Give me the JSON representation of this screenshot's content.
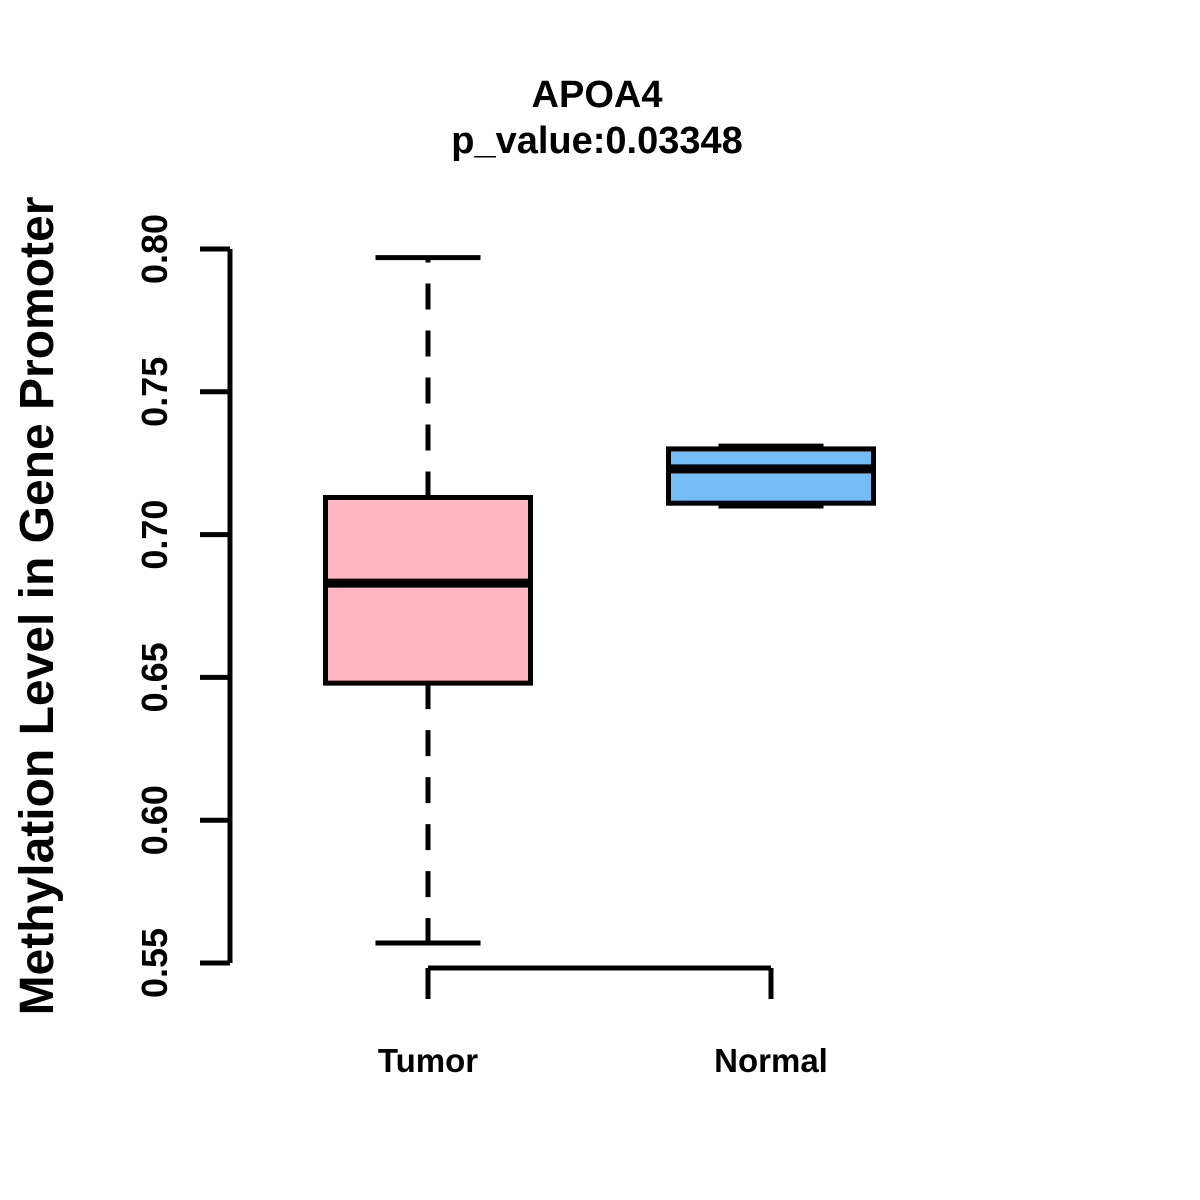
{
  "chart_data": {
    "type": "boxplot",
    "title": "APOA4",
    "subtitle": "p_value:0.03348",
    "gene": "APOA4",
    "p_value": 0.03348,
    "ylabel": "Methylation Level in Gene Promoter",
    "xlabel": "",
    "ylim": [
      0.55,
      0.8
    ],
    "yticks": [
      0.8,
      0.75,
      0.7,
      0.65,
      0.6,
      0.55
    ],
    "ytick_labels": [
      "0.80",
      "0.75",
      "0.70",
      "0.65",
      "0.60",
      "0.55"
    ],
    "categories": [
      "Tumor",
      "Normal"
    ],
    "grid": false,
    "legend": "none",
    "groups": [
      {
        "label": "Tumor",
        "color": "#FFB6C1",
        "stats": {
          "whisker_low": 0.557,
          "q1": 0.648,
          "median": 0.683,
          "q3": 0.713,
          "whisker_high": 0.797
        }
      },
      {
        "label": "Normal",
        "color": "#74BDF7",
        "stats": {
          "whisker_low": 0.71,
          "q1": 0.711,
          "median": 0.723,
          "q3": 0.73,
          "whisker_high": 0.731
        }
      }
    ],
    "colors": {
      "box_border": "#000000",
      "median": "#000000",
      "axis": "#000000",
      "text": "#000000",
      "background": "#FFFFFF"
    }
  }
}
